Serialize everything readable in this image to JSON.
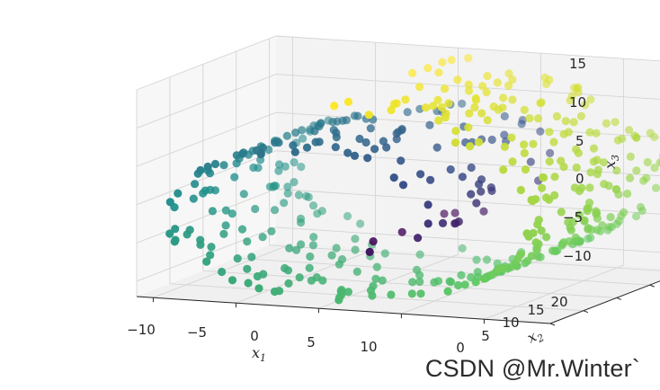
{
  "chart_data": {
    "type": "scatter",
    "projection": "3d",
    "dataset": "swiss roll",
    "colormap": "viridis",
    "colormap_stops": [
      "#440154",
      "#3b528b",
      "#21908d",
      "#5dc863",
      "#fde725"
    ],
    "x_ticks": [
      "−10",
      "−5",
      "0",
      "5",
      "10"
    ],
    "y_ticks": [
      "0",
      "5",
      "10",
      "15",
      "20"
    ],
    "z_ticks": [
      "15",
      "10",
      "5",
      "0",
      "−5",
      "−10"
    ],
    "x_label": {
      "base": "x",
      "sub": "1"
    },
    "y_label": {
      "base": "x",
      "sub": "2"
    },
    "z_label": {
      "base": "x",
      "sub": "3"
    },
    "xlim": [
      -11,
      14
    ],
    "ylim": [
      0,
      21
    ],
    "zlim": [
      -12,
      15
    ],
    "point_count": 480,
    "t_range": [
      4.71,
      14.14
    ],
    "grid": true
  },
  "watermark": "CSDN @Mr.Winter`"
}
